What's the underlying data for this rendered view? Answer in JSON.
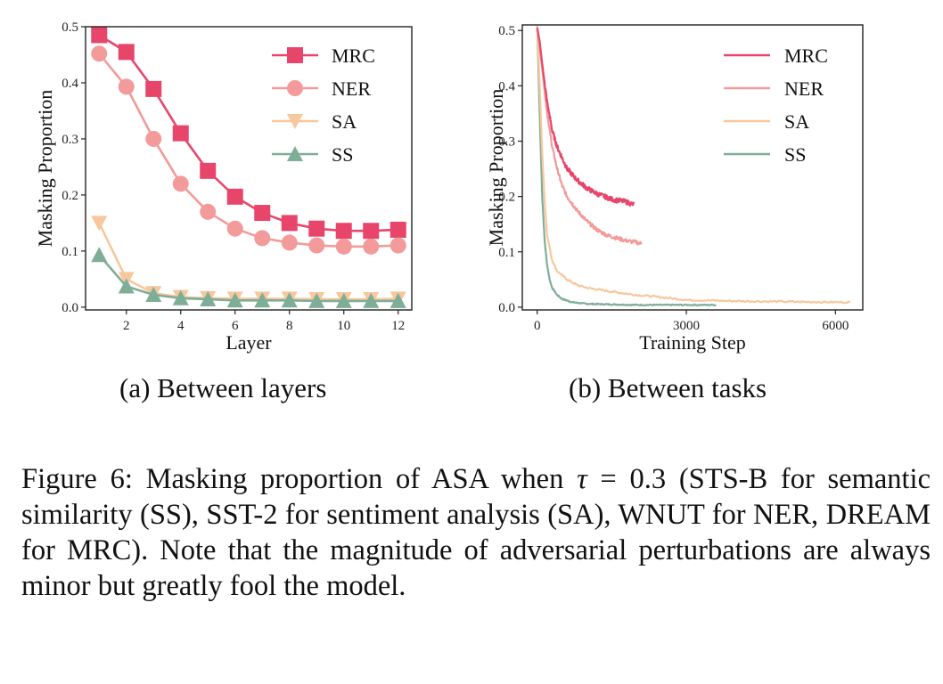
{
  "colors": {
    "MRC": "#e8456b",
    "NER": "#f39a9a",
    "SA": "#f7c79d",
    "SS": "#7fae97"
  },
  "chart_data": [
    {
      "type": "line",
      "id": "a",
      "subtitle": "(a) Between layers",
      "xlabel": "Layer",
      "ylabel": "Masking Proportion",
      "xlim": [
        0.5,
        12.5
      ],
      "ylim": [
        -0.005,
        0.5
      ],
      "xticks": [
        2,
        4,
        6,
        8,
        10,
        12
      ],
      "yticks": [
        0.0,
        0.1,
        0.2,
        0.3,
        0.4,
        0.5
      ],
      "ytick_labels": [
        "0.0",
        "0.1",
        "0.2",
        "0.3",
        "0.4",
        "0.5"
      ],
      "legend_position": "top-right",
      "x": [
        1,
        2,
        3,
        4,
        5,
        6,
        7,
        8,
        9,
        10,
        11,
        12
      ],
      "series": [
        {
          "name": "MRC",
          "marker": "square",
          "values": [
            0.485,
            0.455,
            0.389,
            0.31,
            0.243,
            0.197,
            0.168,
            0.15,
            0.14,
            0.136,
            0.136,
            0.138
          ]
        },
        {
          "name": "NER",
          "marker": "circle",
          "values": [
            0.452,
            0.393,
            0.3,
            0.22,
            0.17,
            0.14,
            0.123,
            0.115,
            0.11,
            0.108,
            0.108,
            0.11
          ]
        },
        {
          "name": "SA",
          "marker": "triangle-down",
          "values": [
            0.15,
            0.05,
            0.025,
            0.018,
            0.016,
            0.015,
            0.015,
            0.015,
            0.014,
            0.014,
            0.014,
            0.015
          ]
        },
        {
          "name": "SS",
          "marker": "triangle-up",
          "values": [
            0.093,
            0.037,
            0.022,
            0.016,
            0.014,
            0.012,
            0.012,
            0.012,
            0.011,
            0.011,
            0.011,
            0.011
          ]
        }
      ]
    },
    {
      "type": "line",
      "id": "b",
      "subtitle": "(b) Between tasks",
      "xlabel": "Training Step",
      "ylabel": "Masking Proportion",
      "xlim": [
        -300,
        6550
      ],
      "ylim": [
        -0.005,
        0.51
      ],
      "xticks": [
        0,
        3000,
        6000
      ],
      "xtick_labels": [
        "0",
        "3000",
        "6000"
      ],
      "yticks": [
        0.0,
        0.1,
        0.2,
        0.3,
        0.4,
        0.5
      ],
      "ytick_labels": [
        "0.0",
        "0.1",
        "0.2",
        "0.3",
        "0.4",
        "0.5"
      ],
      "legend_position": "top-right",
      "series": [
        {
          "name": "MRC",
          "x": [
            0,
            50,
            100,
            200,
            300,
            400,
            500,
            600,
            800,
            1000,
            1200,
            1500,
            1800,
            1950
          ],
          "values": [
            0.505,
            0.48,
            0.44,
            0.37,
            0.32,
            0.29,
            0.27,
            0.25,
            0.23,
            0.215,
            0.205,
            0.195,
            0.19,
            0.185
          ]
        },
        {
          "name": "NER",
          "x": [
            0,
            50,
            100,
            200,
            300,
            400,
            500,
            600,
            800,
            1000,
            1200,
            1400,
            1600,
            1800,
            2000,
            2100
          ],
          "values": [
            0.505,
            0.47,
            0.43,
            0.35,
            0.29,
            0.25,
            0.22,
            0.2,
            0.175,
            0.155,
            0.14,
            0.13,
            0.125,
            0.12,
            0.117,
            0.115
          ]
        },
        {
          "name": "SA",
          "x": [
            0,
            50,
            100,
            150,
            200,
            300,
            400,
            600,
            800,
            1000,
            1500,
            2000,
            2500,
            3000,
            4000,
            5000,
            6000,
            6300
          ],
          "values": [
            0.51,
            0.4,
            0.28,
            0.19,
            0.13,
            0.085,
            0.065,
            0.05,
            0.04,
            0.035,
            0.028,
            0.022,
            0.018,
            0.013,
            0.011,
            0.01,
            0.009,
            0.009
          ]
        },
        {
          "name": "SS",
          "x": [
            0,
            50,
            100,
            150,
            200,
            250,
            300,
            400,
            500,
            700,
            1000,
            1500,
            2000,
            3000,
            3600
          ],
          "values": [
            0.51,
            0.35,
            0.2,
            0.12,
            0.075,
            0.05,
            0.035,
            0.022,
            0.015,
            0.009,
            0.006,
            0.005,
            0.004,
            0.004,
            0.004
          ]
        }
      ]
    }
  ],
  "caption": {
    "part1": "Figure 6: Masking proportion of ASA when ",
    "tau": "τ",
    "part2": " = 0.3 (STS-B for semantic similarity (SS), SST-2 for sentiment analysis (SA), WNUT for NER, DREAM for MRC). Note that the magnitude of adversarial perturbations are always minor but greatly fool the model."
  }
}
